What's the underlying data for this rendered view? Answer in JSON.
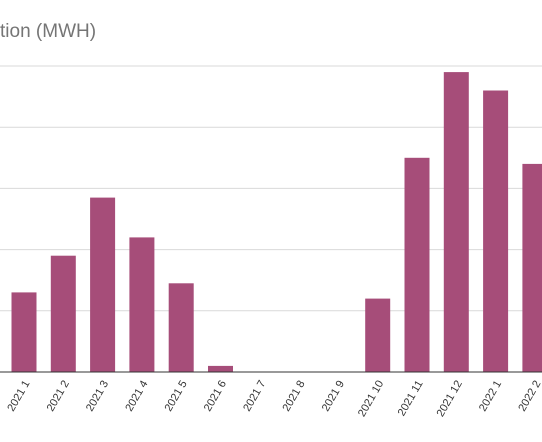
{
  "chart_data": {
    "type": "bar",
    "title": "tion (MWH)",
    "categories": [
      "2021 1",
      "2021 2",
      "2021 3",
      "2021 4",
      "2021 5",
      "2021 6",
      "2021 7",
      "2021 8",
      "2021 9",
      "2021 10",
      "2021 11",
      "2021 12",
      "2022 1",
      "2022 2"
    ],
    "values": [
      26,
      38,
      57,
      44,
      29,
      2,
      0,
      0,
      0,
      24,
      70,
      98,
      92,
      68
    ],
    "ylim": [
      0,
      100
    ],
    "grid": true,
    "bar_color": "#a64d79"
  }
}
